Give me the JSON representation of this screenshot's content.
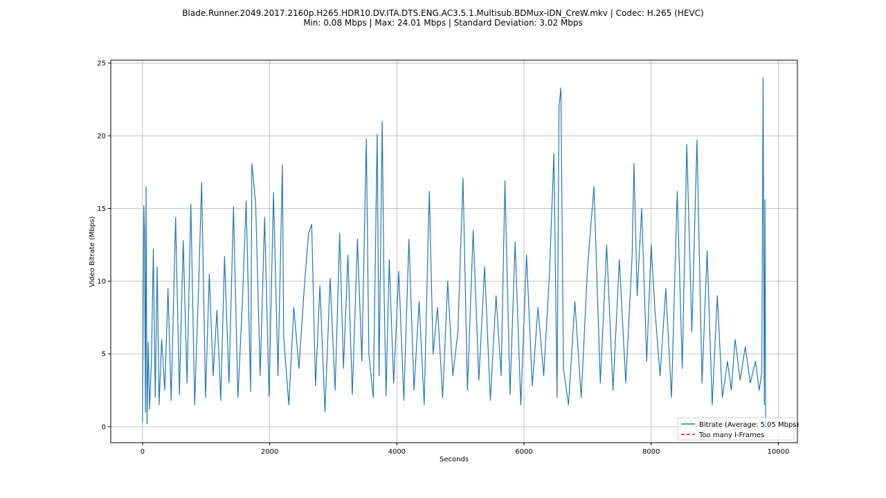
{
  "chart_data": {
    "type": "line",
    "title": "Blade.Runner.2049.2017.2160p.H265.HDR10.DV.ITA.DTS.ENG.AC3.5.1.Multisub.BDMux-iDN_CreW.mkv | Codec: H.265 (HEVC)",
    "subtitle": "Min: 0.08 Mbps | Max: 24.01 Mbps | Standard Deviation: 3.02 Mbps",
    "xlabel": "Seconds",
    "ylabel": "Video Bitrate (Mbps)",
    "xlim": [
      -500,
      10300
    ],
    "ylim": [
      -1.1,
      25.2
    ],
    "xticks": [
      0,
      2000,
      4000,
      6000,
      8000,
      10000
    ],
    "xtick_labels": [
      "0",
      "2000",
      "4000",
      "6000",
      "8000",
      "10000"
    ],
    "yticks": [
      0,
      5,
      10,
      15,
      20,
      25
    ],
    "ytick_labels": [
      "0",
      "5",
      "10",
      "15",
      "20",
      "25"
    ],
    "grid": true,
    "legend_position": "bottom-right",
    "colors": {
      "bitrate": "#1f77b4",
      "iframes": "#ff0000"
    },
    "series": [
      {
        "name": "Bitrate (Average: 5.05 Mbps)",
        "style": "solid",
        "x": [
          0,
          20,
          30,
          45,
          55,
          70,
          90,
          110,
          140,
          170,
          200,
          230,
          260,
          300,
          350,
          400,
          450,
          520,
          580,
          640,
          700,
          760,
          820,
          880,
          930,
          990,
          1050,
          1110,
          1170,
          1230,
          1290,
          1360,
          1430,
          1500,
          1570,
          1630,
          1700,
          1720,
          1780,
          1850,
          1920,
          1990,
          2060,
          2130,
          2200,
          2220,
          2300,
          2380,
          2460,
          2540,
          2610,
          2660,
          2720,
          2790,
          2870,
          2950,
          3030,
          3100,
          3160,
          3230,
          3300,
          3380,
          3450,
          3520,
          3560,
          3630,
          3690,
          3720,
          3770,
          3800,
          3830,
          3880,
          3950,
          4030,
          4110,
          4190,
          4270,
          4350,
          4430,
          4510,
          4570,
          4640,
          4720,
          4800,
          4880,
          4960,
          5040,
          5110,
          5200,
          5290,
          5380,
          5470,
          5560,
          5640,
          5700,
          5780,
          5860,
          5950,
          6040,
          6130,
          6220,
          6310,
          6400,
          6470,
          6520,
          6550,
          6580,
          6620,
          6700,
          6800,
          6900,
          7000,
          7100,
          7200,
          7300,
          7400,
          7500,
          7600,
          7700,
          7730,
          7780,
          7850,
          7930,
          8000,
          8060,
          8140,
          8230,
          8320,
          8410,
          8490,
          8560,
          8640,
          8720,
          8800,
          8880,
          8960,
          9040,
          9120,
          9200,
          9260,
          9320,
          9400,
          9480,
          9560,
          9640,
          9700,
          9740,
          9760,
          9780,
          9790,
          9800
        ],
        "y": [
          0.3,
          15.2,
          13.5,
          1.0,
          16.5,
          0.2,
          5.8,
          1.2,
          4.5,
          12.2,
          2.0,
          11.0,
          1.5,
          6.0,
          2.5,
          9.5,
          1.8,
          14.4,
          2.2,
          12.8,
          3.0,
          15.3,
          1.5,
          9.4,
          16.8,
          2.0,
          10.5,
          3.5,
          8.0,
          1.8,
          11.7,
          3.0,
          15.1,
          2.0,
          8.5,
          15.5,
          2.4,
          18.1,
          15.3,
          3.5,
          14.4,
          2.1,
          16.1,
          3.5,
          18.0,
          6.2,
          1.5,
          8.2,
          4.0,
          9.3,
          13.3,
          13.9,
          2.8,
          9.7,
          1.0,
          10.2,
          2.5,
          13.3,
          4.0,
          11.8,
          2.2,
          12.9,
          4.5,
          19.8,
          5.0,
          2.0,
          20.1,
          3.5,
          21.0,
          9.0,
          2.1,
          11.5,
          3.0,
          10.7,
          1.8,
          12.9,
          2.5,
          8.6,
          1.5,
          16.2,
          5.0,
          8.2,
          2.0,
          10.0,
          3.5,
          6.5,
          17.1,
          2.5,
          13.5,
          3.2,
          11.0,
          1.8,
          9.0,
          3.5,
          16.9,
          2.2,
          12.7,
          1.5,
          11.8,
          2.8,
          8.2,
          3.5,
          10.5,
          18.8,
          2.0,
          22.0,
          23.3,
          4.0,
          1.5,
          8.6,
          2.0,
          11.0,
          16.5,
          3.0,
          12.5,
          2.5,
          11.5,
          3.0,
          11.7,
          18.1,
          9.0,
          15.0,
          4.5,
          12.5,
          8.0,
          3.5,
          9.5,
          2.0,
          16.2,
          4.0,
          19.4,
          6.5,
          19.7,
          3.0,
          12.1,
          1.5,
          9.0,
          2.0,
          4.5,
          2.5,
          6.0,
          3.2,
          5.5,
          3.0,
          4.5,
          2.5,
          3.8,
          24.0,
          1.5,
          15.6,
          0.1
        ]
      },
      {
        "name": "Too many I-Frames",
        "style": "dashed",
        "x": [],
        "y": []
      }
    ]
  }
}
